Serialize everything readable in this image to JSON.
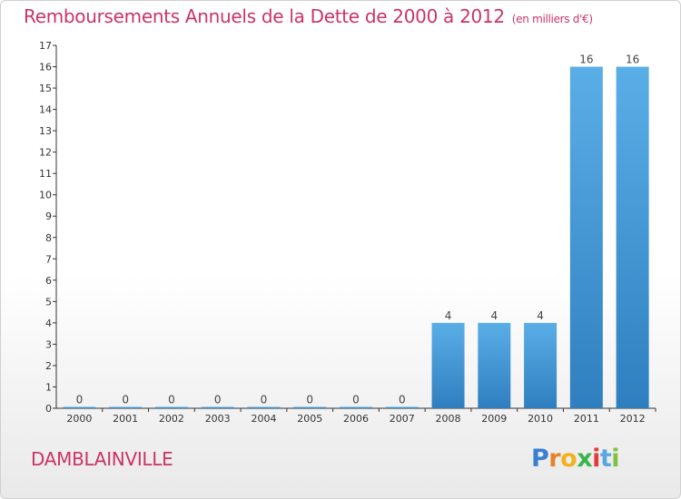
{
  "chart_data": {
    "type": "bar",
    "title": "Remboursements Annuels de la Dette de 2000 à 2012",
    "unit_note": "(en milliers d'€)",
    "categories": [
      "2000",
      "2001",
      "2002",
      "2003",
      "2004",
      "2005",
      "2006",
      "2007",
      "2008",
      "2009",
      "2010",
      "2011",
      "2012"
    ],
    "values": [
      0,
      0,
      0,
      0,
      0,
      0,
      0,
      0,
      4,
      4,
      4,
      16,
      16
    ],
    "ylim": [
      0,
      17
    ],
    "yticks": [
      "0",
      "1",
      "2",
      "3",
      "4",
      "5",
      "6",
      "7",
      "8",
      "9",
      "10",
      "11",
      "12",
      "13",
      "14",
      "15",
      "16",
      "17"
    ],
    "xlabel": "",
    "ylabel": "",
    "grid": false,
    "bar_color_top": "#5aaee6",
    "bar_color_bottom": "#2f7fc0"
  },
  "place_name": "DAMBLAINVILLE",
  "brand": {
    "letters": [
      "P",
      "r",
      "o",
      "x",
      "i",
      "t",
      "i"
    ],
    "colors": [
      "#3a7fd0",
      "#e5832a",
      "#f2b21c",
      "#3bb54a",
      "#e23b3b",
      "#5aa7e0",
      "#7fc241"
    ]
  },
  "colors": {
    "title": "#cc3366",
    "axis": "#333333"
  }
}
